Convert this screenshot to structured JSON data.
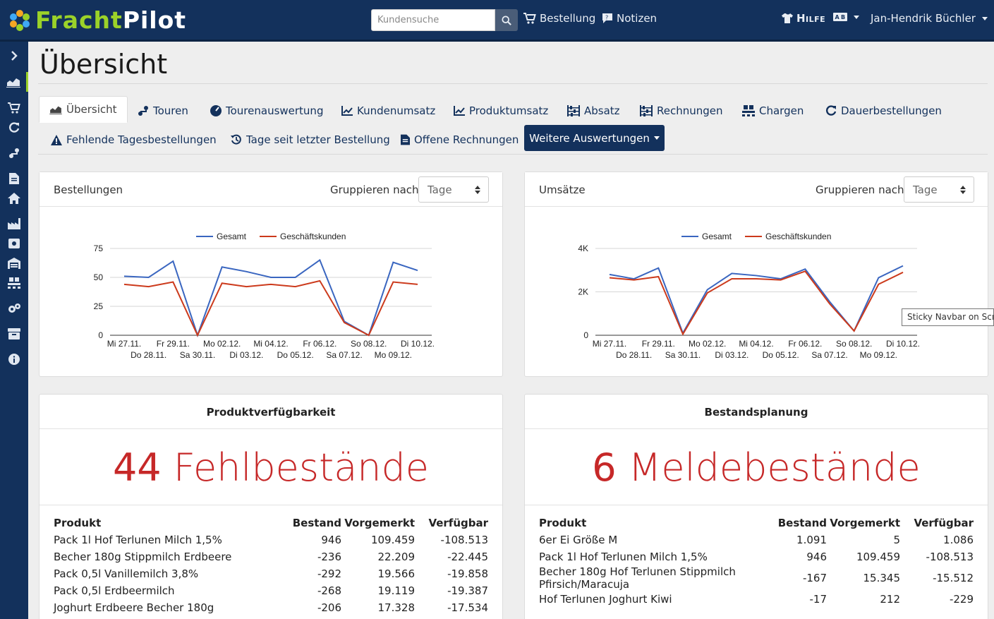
{
  "brand": {
    "part1": "Fracht",
    "part2": "Pilot"
  },
  "search": {
    "placeholder": "Kundensuche"
  },
  "nav": {
    "order": "Bestellung",
    "notes": "Notizen",
    "help": "Hilfe",
    "user": "Jan-Hendrik Büchler"
  },
  "page": {
    "title": "Übersicht"
  },
  "tabs": {
    "overview": "Übersicht",
    "tours": "Touren",
    "tour_eval": "Tourenauswertung",
    "customer_sales": "Kundenumsatz",
    "product_sales": "Produktumsatz",
    "sales_volume": "Absatz",
    "invoices": "Rechnungen",
    "batches": "Chargen",
    "standing_orders": "Dauerbestellungen",
    "missing_daily": "Fehlende Tagesbestellungen",
    "days_since": "Tage seit letzter Bestellung",
    "open_invoices": "Offene Rechnungen",
    "more": "Weitere Auswertungen"
  },
  "orders_card": {
    "title": "Bestellungen",
    "group_label": "Gruppieren nach:",
    "group_value": "Tage"
  },
  "revenue_card": {
    "title": "Umsätze",
    "group_label": "Gruppieren nach:",
    "group_value": "Tage"
  },
  "chart_data": [
    {
      "type": "line",
      "title": "Bestellungen",
      "legend": "top",
      "categories": [
        "Mi 27.11.",
        "Do 28.11.",
        "Fr 29.11.",
        "Sa 30.11.",
        "Mo 02.12.",
        "Di 03.12.",
        "Mi 04.12.",
        "Do 05.12.",
        "Fr 06.12.",
        "Sa 07.12.",
        "So 08.12.",
        "Mo 09.12.",
        "Di 10.12."
      ],
      "ylim": [
        0,
        75
      ],
      "yticks": [
        "0",
        "25",
        "50",
        "75"
      ],
      "series": [
        {
          "name": "Gesamt",
          "color": "#3a66c0",
          "values": [
            51,
            50,
            64,
            0,
            59,
            55,
            50,
            50,
            65,
            12,
            0,
            63,
            56
          ]
        },
        {
          "name": "Geschäftskunden",
          "color": "#cc3a1c",
          "values": [
            44,
            42,
            46,
            0,
            45,
            42,
            44,
            42,
            47,
            11,
            0,
            46,
            44
          ]
        }
      ]
    },
    {
      "type": "line",
      "title": "Umsätze",
      "legend": "top",
      "categories": [
        "Mi 27.11.",
        "Do 28.11.",
        "Fr 29.11.",
        "Sa 30.11.",
        "Mo 02.12.",
        "Di 03.12.",
        "Mi 04.12.",
        "Do 05.12.",
        "Fr 06.12.",
        "Sa 07.12.",
        "So 08.12.",
        "Mo 09.12.",
        "Di 10.12."
      ],
      "ylim": [
        0,
        4000
      ],
      "yticks": [
        "0",
        "2K",
        "4K"
      ],
      "series": [
        {
          "name": "Gesamt",
          "color": "#3a66c0",
          "values": [
            2800,
            2600,
            3100,
            100,
            2100,
            2850,
            2750,
            2600,
            3050,
            1550,
            200,
            2650,
            3200
          ]
        },
        {
          "name": "Geschäftskunden",
          "color": "#cc3a1c",
          "values": [
            2650,
            2550,
            2700,
            50,
            1950,
            2600,
            2600,
            2550,
            2950,
            1450,
            200,
            2350,
            2900
          ]
        }
      ]
    }
  ],
  "availability": {
    "title": "Produktverfügbarkeit",
    "count": "44",
    "label": "Fehlbestände",
    "columns": [
      "Produkt",
      "Bestand",
      "Vorgemerkt",
      "Verfügbar"
    ],
    "rows": [
      [
        "Pack 1l Hof Terlunen Milch 1,5%",
        "946",
        "109.459",
        "-108.513"
      ],
      [
        "Becher 180g Stippmilch Erdbeere",
        "-236",
        "22.209",
        "-22.445"
      ],
      [
        "Pack 0,5l Vanillemilch 3,8%",
        "-292",
        "19.566",
        "-19.858"
      ],
      [
        "Pack 0,5l Erdbeermilch",
        "-268",
        "19.119",
        "-19.387"
      ],
      [
        "Joghurt Erdbeere Becher 180g",
        "-206",
        "17.328",
        "-17.534"
      ]
    ]
  },
  "planning": {
    "title": "Bestandsplanung",
    "count": "6",
    "label": "Meldebestände",
    "columns": [
      "Produkt",
      "Bestand",
      "Vorgemerkt",
      "Verfügbar"
    ],
    "rows": [
      [
        "6er Ei Größe M",
        "1.091",
        "5",
        "1.086"
      ],
      [
        "Pack 1l Hof Terlunen Milch 1,5%",
        "946",
        "109.459",
        "-108.513"
      ],
      [
        "Becher 180g Hof Terlunen Stippmilch Pfirsich/Maracuja",
        "-167",
        "15.345",
        "-15.512"
      ],
      [
        "Hof Terlunen Joghurt Kiwi",
        "-17",
        "212",
        "-229"
      ]
    ]
  },
  "tooltip": "Sticky Navbar on Scroll"
}
